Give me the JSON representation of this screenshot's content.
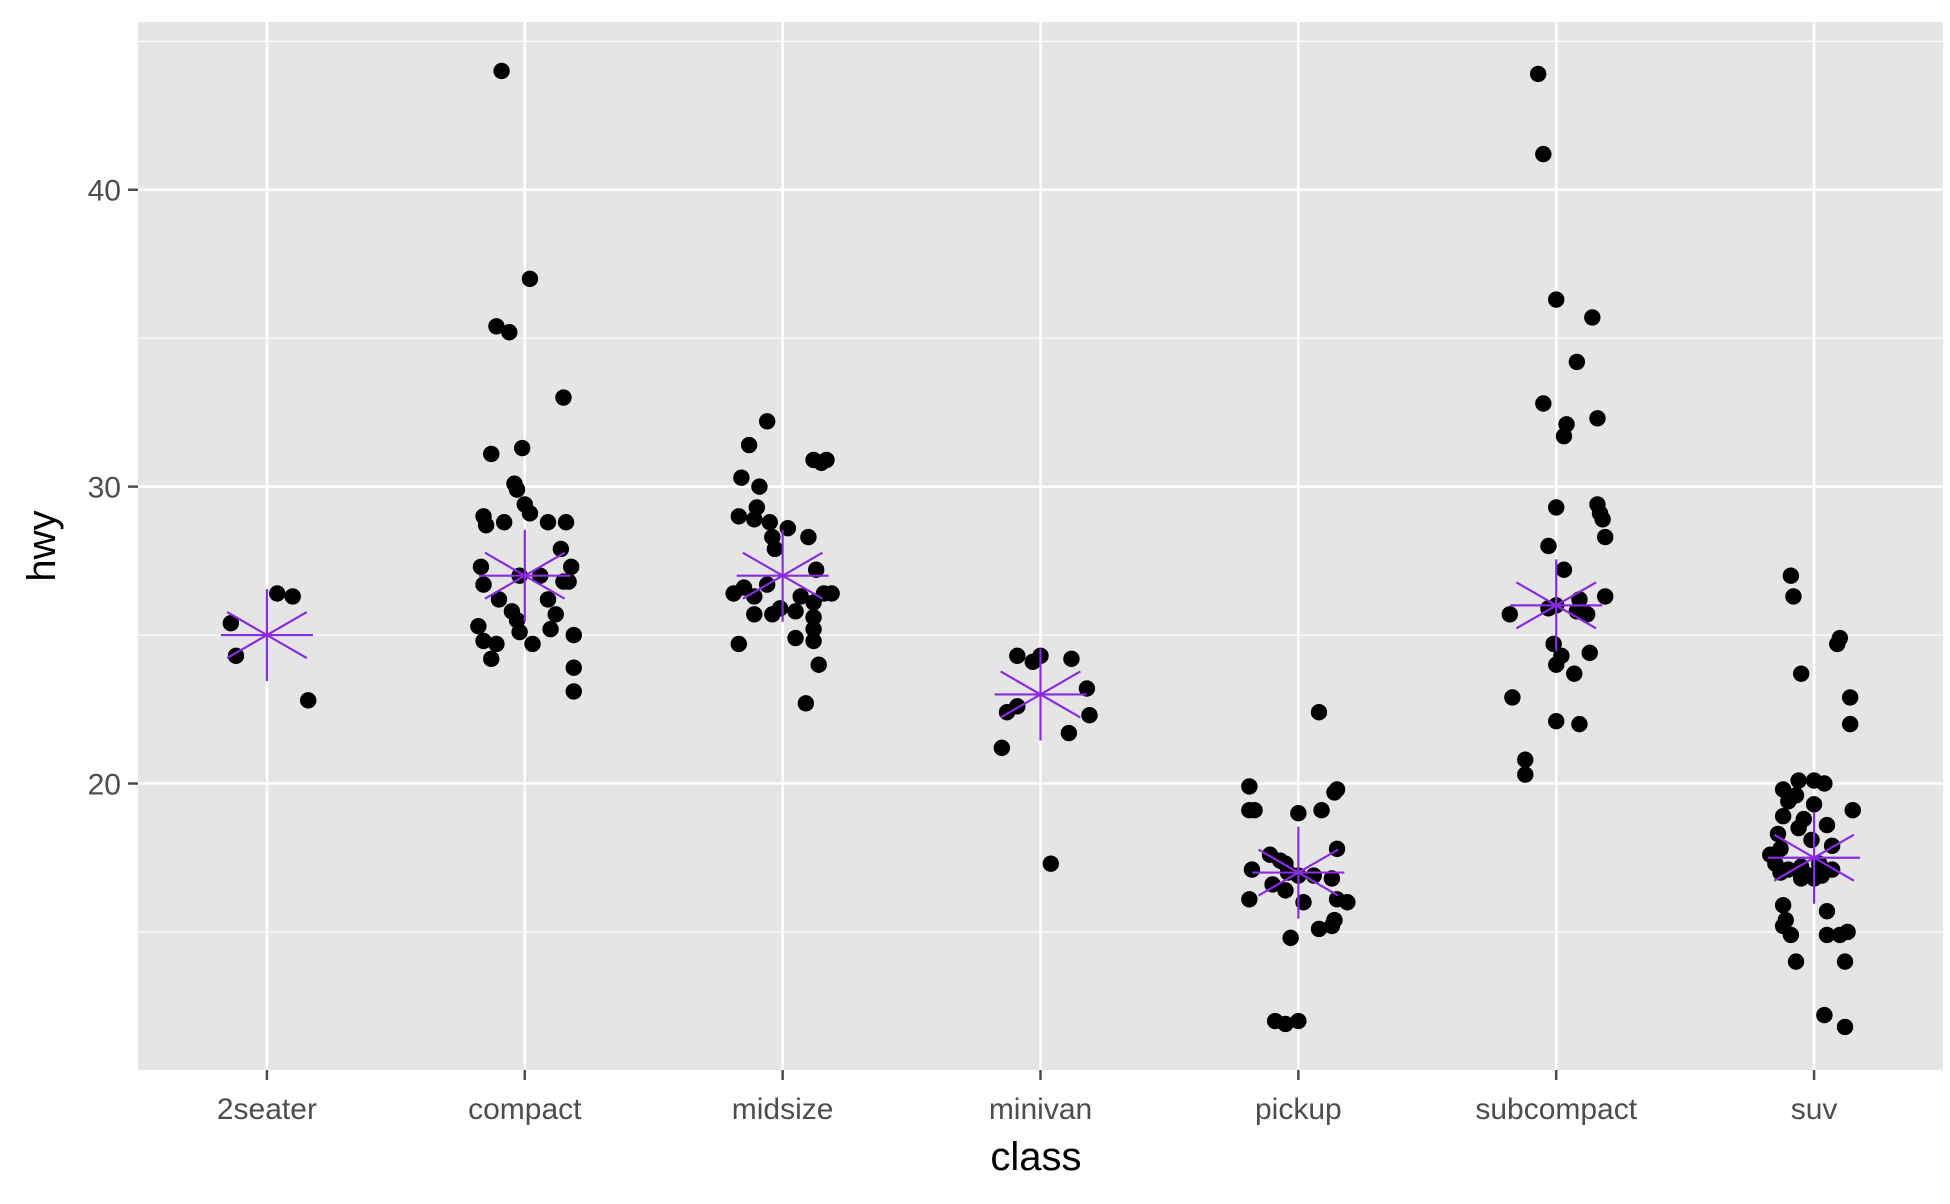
{
  "chart_data": {
    "type": "scatter",
    "xlabel": "class",
    "ylabel": "hwy",
    "categories": [
      "2seater",
      "compact",
      "midsize",
      "minivan",
      "pickup",
      "subcompact",
      "suv"
    ],
    "y_ticks": [
      20,
      30,
      40
    ],
    "ylim": [
      10.35,
      45.65
    ],
    "grid": true,
    "legend": "none",
    "colors": {
      "panel": "#e5e5e5",
      "grid": "#ffffff",
      "points": "#000000",
      "summary": "#8a2be2",
      "ticks": "#4d4d4d"
    },
    "summary": {
      "stat": "median",
      "shape": "asterisk",
      "values": [
        25,
        27,
        27,
        23,
        17,
        26,
        17.5
      ]
    },
    "series": [
      {
        "values": [
          {
            "category": "2seater",
            "points": [
              [
                -0.14,
                25.4
              ],
              [
                -0.12,
                24.3
              ],
              [
                0.04,
                26.4
              ],
              [
                0.1,
                26.3
              ],
              [
                0.16,
                22.8
              ]
            ]
          },
          {
            "category": "compact",
            "points": [
              [
                -0.09,
                44.0
              ],
              [
                0.02,
                37.0
              ],
              [
                -0.11,
                35.4
              ],
              [
                -0.06,
                35.2
              ],
              [
                0.15,
                33.0
              ],
              [
                -0.13,
                31.1
              ],
              [
                -0.01,
                31.3
              ],
              [
                -0.04,
                30.1
              ],
              [
                -0.03,
                29.9
              ],
              [
                0.0,
                29.4
              ],
              [
                0.02,
                29.1
              ],
              [
                -0.16,
                29.0
              ],
              [
                -0.15,
                28.7
              ],
              [
                -0.08,
                28.8
              ],
              [
                0.09,
                28.8
              ],
              [
                0.16,
                28.8
              ],
              [
                0.14,
                27.9
              ],
              [
                -0.17,
                27.3
              ],
              [
                0.18,
                27.3
              ],
              [
                -0.02,
                27.0
              ],
              [
                0.06,
                27.0
              ],
              [
                -0.16,
                26.7
              ],
              [
                0.17,
                26.8
              ],
              [
                0.15,
                26.8
              ],
              [
                -0.1,
                26.2
              ],
              [
                0.09,
                26.2
              ],
              [
                0.12,
                25.7
              ],
              [
                -0.05,
                25.8
              ],
              [
                -0.03,
                25.5
              ],
              [
                -0.18,
                25.3
              ],
              [
                -0.02,
                25.1
              ],
              [
                0.1,
                25.2
              ],
              [
                0.19,
                25.0
              ],
              [
                -0.16,
                24.8
              ],
              [
                -0.11,
                24.7
              ],
              [
                0.03,
                24.7
              ],
              [
                -0.13,
                24.2
              ],
              [
                0.19,
                23.9
              ],
              [
                0.19,
                23.1
              ]
            ]
          },
          {
            "category": "midsize",
            "points": [
              [
                -0.06,
                32.2
              ],
              [
                -0.13,
                31.4
              ],
              [
                0.12,
                30.9
              ],
              [
                0.17,
                30.9
              ],
              [
                0.15,
                30.8
              ],
              [
                -0.16,
                30.3
              ],
              [
                -0.09,
                30.0
              ],
              [
                -0.1,
                29.3
              ],
              [
                -0.17,
                29.0
              ],
              [
                -0.11,
                28.9
              ],
              [
                -0.05,
                28.8
              ],
              [
                0.02,
                28.6
              ],
              [
                0.1,
                28.3
              ],
              [
                -0.04,
                28.3
              ],
              [
                -0.03,
                27.9
              ],
              [
                0.13,
                27.2
              ],
              [
                -0.06,
                26.7
              ],
              [
                0.07,
                26.3
              ],
              [
                0.16,
                26.4
              ],
              [
                0.19,
                26.4
              ],
              [
                -0.19,
                26.4
              ],
              [
                -0.15,
                26.6
              ],
              [
                -0.11,
                26.3
              ],
              [
                0.12,
                26.1
              ],
              [
                -0.01,
                25.9
              ],
              [
                0.05,
                25.8
              ],
              [
                -0.11,
                25.7
              ],
              [
                -0.04,
                25.7
              ],
              [
                0.12,
                25.6
              ],
              [
                0.12,
                25.2
              ],
              [
                0.05,
                24.9
              ],
              [
                0.12,
                24.8
              ],
              [
                -0.17,
                24.7
              ],
              [
                0.14,
                24.0
              ],
              [
                0.09,
                22.7
              ]
            ]
          },
          {
            "category": "minivan",
            "points": [
              [
                -0.09,
                24.3
              ],
              [
                0.0,
                24.3
              ],
              [
                -0.03,
                24.1
              ],
              [
                0.12,
                24.2
              ],
              [
                0.18,
                23.2
              ],
              [
                -0.09,
                22.6
              ],
              [
                -0.13,
                22.4
              ],
              [
                0.19,
                22.3
              ],
              [
                0.11,
                21.7
              ],
              [
                -0.15,
                21.2
              ],
              [
                0.04,
                17.3
              ]
            ]
          },
          {
            "category": "pickup",
            "points": [
              [
                -0.19,
                19.9
              ],
              [
                -0.19,
                19.1
              ],
              [
                -0.17,
                19.1
              ],
              [
                0.0,
                19.0
              ],
              [
                0.09,
                19.1
              ],
              [
                0.15,
                19.8
              ],
              [
                0.14,
                19.7
              ],
              [
                0.08,
                22.4
              ],
              [
                -0.11,
                17.6
              ],
              [
                -0.07,
                17.4
              ],
              [
                -0.05,
                17.3
              ],
              [
                0.15,
                17.8
              ],
              [
                -0.18,
                17.1
              ],
              [
                -0.04,
                17.0
              ],
              [
                0.0,
                16.9
              ],
              [
                0.06,
                16.9
              ],
              [
                0.13,
                16.8
              ],
              [
                -0.1,
                16.6
              ],
              [
                -0.05,
                16.4
              ],
              [
                0.15,
                16.1
              ],
              [
                0.19,
                16.0
              ],
              [
                -0.19,
                16.1
              ],
              [
                0.02,
                16.0
              ],
              [
                0.14,
                15.4
              ],
              [
                0.13,
                15.2
              ],
              [
                0.08,
                15.1
              ],
              [
                -0.03,
                14.8
              ],
              [
                -0.09,
                12.0
              ],
              [
                -0.05,
                11.9
              ],
              [
                0.0,
                12.0
              ]
            ]
          },
          {
            "category": "subcompact",
            "points": [
              [
                -0.07,
                43.9
              ],
              [
                -0.05,
                41.2
              ],
              [
                0.0,
                36.3
              ],
              [
                0.14,
                35.7
              ],
              [
                0.08,
                34.2
              ],
              [
                -0.05,
                32.8
              ],
              [
                0.04,
                32.1
              ],
              [
                0.03,
                31.7
              ],
              [
                0.16,
                32.3
              ],
              [
                0.0,
                29.3
              ],
              [
                0.16,
                29.4
              ],
              [
                0.17,
                29.1
              ],
              [
                0.18,
                28.9
              ],
              [
                0.19,
                28.3
              ],
              [
                -0.03,
                28.0
              ],
              [
                0.03,
                27.2
              ],
              [
                0.19,
                26.3
              ],
              [
                0.09,
                26.2
              ],
              [
                -0.03,
                25.9
              ],
              [
                0.0,
                26.0
              ],
              [
                -0.18,
                25.7
              ],
              [
                0.08,
                25.8
              ],
              [
                0.12,
                25.7
              ],
              [
                -0.01,
                24.7
              ],
              [
                0.13,
                24.4
              ],
              [
                0.02,
                24.3
              ],
              [
                0.0,
                24.0
              ],
              [
                0.07,
                23.7
              ],
              [
                -0.17,
                22.9
              ],
              [
                0.0,
                22.1
              ],
              [
                0.09,
                22.0
              ],
              [
                -0.12,
                20.8
              ],
              [
                -0.12,
                20.3
              ]
            ]
          },
          {
            "category": "suv",
            "points": [
              [
                -0.09,
                27.0
              ],
              [
                -0.08,
                26.3
              ],
              [
                0.1,
                24.9
              ],
              [
                0.09,
                24.7
              ],
              [
                -0.05,
                23.7
              ],
              [
                0.14,
                22.9
              ],
              [
                0.14,
                22.0
              ],
              [
                -0.06,
                20.1
              ],
              [
                -0.12,
                19.8
              ],
              [
                0.0,
                20.1
              ],
              [
                0.04,
                20.0
              ],
              [
                -0.1,
                19.4
              ],
              [
                -0.07,
                19.6
              ],
              [
                0.0,
                19.3
              ],
              [
                0.15,
                19.1
              ],
              [
                -0.12,
                18.9
              ],
              [
                -0.04,
                18.8
              ],
              [
                -0.06,
                18.5
              ],
              [
                0.05,
                18.6
              ],
              [
                -0.14,
                18.3
              ],
              [
                -0.01,
                18.1
              ],
              [
                -0.13,
                17.8
              ],
              [
                0.07,
                17.9
              ],
              [
                -0.17,
                17.6
              ],
              [
                -0.15,
                17.3
              ],
              [
                -0.1,
                17.1
              ],
              [
                -0.05,
                17.2
              ],
              [
                0.02,
                17.3
              ],
              [
                0.07,
                17.1
              ],
              [
                -0.13,
                17.0
              ],
              [
                -0.01,
                16.9
              ],
              [
                0.03,
                16.9
              ],
              [
                0.0,
                16.8
              ],
              [
                -0.05,
                16.8
              ],
              [
                -0.12,
                15.9
              ],
              [
                0.05,
                15.7
              ],
              [
                -0.11,
                15.4
              ],
              [
                -0.12,
                15.2
              ],
              [
                -0.09,
                14.9
              ],
              [
                0.05,
                14.9
              ],
              [
                0.1,
                14.9
              ],
              [
                0.13,
                15.0
              ],
              [
                -0.07,
                14.0
              ],
              [
                0.12,
                14.0
              ],
              [
                0.04,
                12.2
              ],
              [
                0.12,
                11.8
              ]
            ]
          }
        ]
      }
    ]
  }
}
